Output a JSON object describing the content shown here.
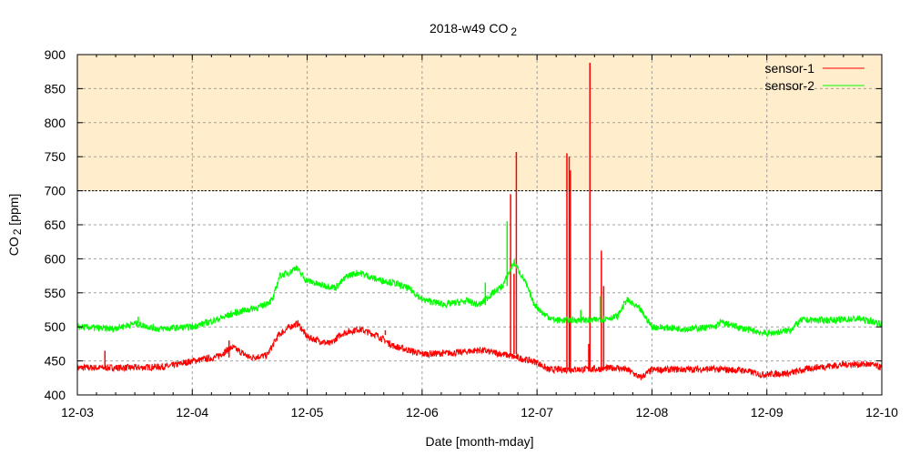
{
  "chart_data": {
    "type": "line",
    "title": "2018-w49 CO",
    "title_sub": "2",
    "xlabel": "Date [month-mday]",
    "ylabel": "CO",
    "ylabel_sub": "2",
    "ylabel_unit": " [ppm]",
    "xlim": [
      0,
      7
    ],
    "ylim": [
      400,
      900
    ],
    "x_unit": "days since 12-03",
    "x_ticks": [
      {
        "v": 0,
        "label": "12-03"
      },
      {
        "v": 1,
        "label": "12-04"
      },
      {
        "v": 2,
        "label": "12-05"
      },
      {
        "v": 3,
        "label": "12-06"
      },
      {
        "v": 4,
        "label": "12-07"
      },
      {
        "v": 5,
        "label": "12-08"
      },
      {
        "v": 6,
        "label": "12-09"
      },
      {
        "v": 7,
        "label": "12-10"
      }
    ],
    "y_ticks": [
      400,
      450,
      500,
      550,
      600,
      650,
      700,
      750,
      800,
      850,
      900
    ],
    "grid": true,
    "legend_position": "top-right",
    "threshold_band": {
      "from": 700,
      "to": 900,
      "color": "#ffedcc"
    },
    "series": [
      {
        "name": "sensor-1",
        "color": "#ff0000",
        "points": [
          [
            0,
            440
          ],
          [
            0.25,
            440
          ],
          [
            0.5,
            440
          ],
          [
            0.8,
            442
          ],
          [
            1.0,
            450
          ],
          [
            1.2,
            455
          ],
          [
            1.35,
            470
          ],
          [
            1.5,
            455
          ],
          [
            1.65,
            458
          ],
          [
            1.75,
            488
          ],
          [
            1.85,
            500
          ],
          [
            1.92,
            505
          ],
          [
            2.0,
            485
          ],
          [
            2.2,
            475
          ],
          [
            2.3,
            490
          ],
          [
            2.45,
            497
          ],
          [
            2.6,
            488
          ],
          [
            2.75,
            472
          ],
          [
            2.9,
            465
          ],
          [
            3.0,
            460
          ],
          [
            3.3,
            462
          ],
          [
            3.5,
            466
          ],
          [
            3.7,
            460
          ],
          [
            3.9,
            452
          ],
          [
            4.0,
            448
          ],
          [
            4.1,
            437
          ],
          [
            4.5,
            438
          ],
          [
            4.7,
            440
          ],
          [
            4.8,
            436
          ],
          [
            4.9,
            425
          ],
          [
            5.0,
            437
          ],
          [
            5.5,
            438
          ],
          [
            5.8,
            436
          ],
          [
            5.95,
            430
          ],
          [
            6.2,
            432
          ],
          [
            6.4,
            440
          ],
          [
            6.7,
            445
          ],
          [
            6.9,
            445
          ],
          [
            7.0,
            440
          ]
        ],
        "spikes": [
          [
            0.24,
            465
          ],
          [
            1.32,
            480
          ],
          [
            2.68,
            495
          ],
          [
            3.77,
            695
          ],
          [
            3.8,
            578
          ],
          [
            3.82,
            757
          ],
          [
            4.26,
            755
          ],
          [
            4.28,
            750
          ],
          [
            4.29,
            730
          ],
          [
            4.45,
            475
          ],
          [
            4.46,
            888
          ],
          [
            4.56,
            612
          ],
          [
            4.58,
            560
          ]
        ]
      },
      {
        "name": "sensor-2",
        "color": "#00ff00",
        "points": [
          [
            0,
            500
          ],
          [
            0.3,
            497
          ],
          [
            0.5,
            505
          ],
          [
            0.7,
            497
          ],
          [
            1.0,
            500
          ],
          [
            1.2,
            510
          ],
          [
            1.4,
            522
          ],
          [
            1.6,
            530
          ],
          [
            1.7,
            540
          ],
          [
            1.76,
            575
          ],
          [
            1.85,
            580
          ],
          [
            1.9,
            588
          ],
          [
            1.98,
            570
          ],
          [
            2.1,
            562
          ],
          [
            2.25,
            558
          ],
          [
            2.35,
            575
          ],
          [
            2.45,
            580
          ],
          [
            2.6,
            570
          ],
          [
            2.75,
            565
          ],
          [
            2.9,
            555
          ],
          [
            3.0,
            540
          ],
          [
            3.2,
            533
          ],
          [
            3.4,
            538
          ],
          [
            3.5,
            532
          ],
          [
            3.6,
            548
          ],
          [
            3.7,
            560
          ],
          [
            3.8,
            595
          ],
          [
            3.9,
            565
          ],
          [
            3.97,
            535
          ],
          [
            4.05,
            520
          ],
          [
            4.15,
            510
          ],
          [
            4.5,
            510
          ],
          [
            4.7,
            515
          ],
          [
            4.78,
            540
          ],
          [
            4.9,
            525
          ],
          [
            5.0,
            500
          ],
          [
            5.3,
            497
          ],
          [
            5.55,
            500
          ],
          [
            5.6,
            507
          ],
          [
            5.8,
            497
          ],
          [
            6.0,
            490
          ],
          [
            6.2,
            495
          ],
          [
            6.3,
            510
          ],
          [
            6.6,
            510
          ],
          [
            6.8,
            512
          ],
          [
            7.0,
            505
          ]
        ],
        "spikes": [
          [
            0.53,
            515
          ],
          [
            3.55,
            565
          ],
          [
            3.74,
            655
          ],
          [
            3.77,
            560
          ],
          [
            4.38,
            525
          ],
          [
            4.55,
            545
          ]
        ]
      }
    ]
  }
}
